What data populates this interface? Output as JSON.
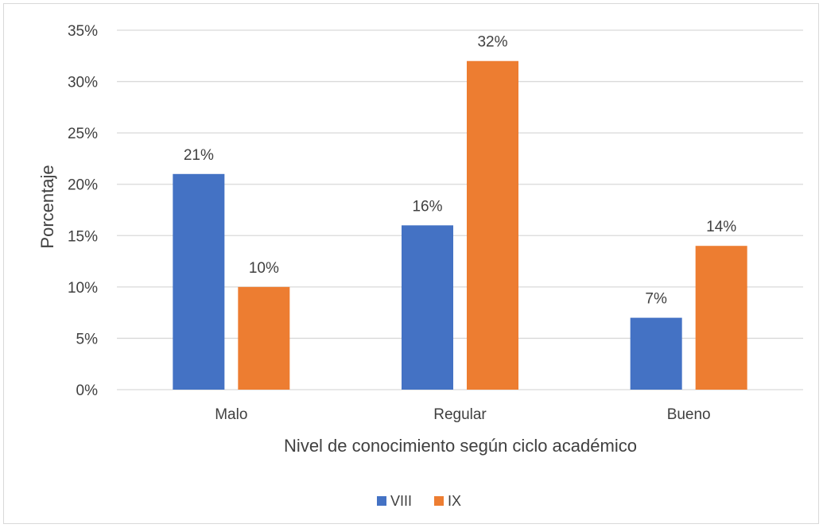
{
  "chart_data": {
    "type": "bar",
    "categories": [
      "Malo",
      "Regular",
      "Bueno"
    ],
    "series": [
      {
        "name": "VIII",
        "values": [
          21,
          16,
          7
        ],
        "color": "#4472C4"
      },
      {
        "name": "IX",
        "values": [
          10,
          32,
          14
        ],
        "color": "#ED7D31"
      }
    ],
    "data_labels": [
      [
        "21%",
        "16%",
        "7%"
      ],
      [
        "10%",
        "32%",
        "14%"
      ]
    ],
    "xlabel": "Nivel de conocimiento según ciclo académico",
    "ylabel": "Porcentaje",
    "ylim": [
      0,
      35
    ],
    "yticks": [
      0,
      5,
      10,
      15,
      20,
      25,
      30,
      35
    ],
    "ytick_labels": [
      "0%",
      "5%",
      "10%",
      "15%",
      "20%",
      "25%",
      "30%",
      "35%"
    ],
    "grid": true,
    "legend": "bottom-center",
    "colors": {
      "grid": "#d9d9d9",
      "text": "#404040",
      "border": "#d9d9d9"
    }
  }
}
